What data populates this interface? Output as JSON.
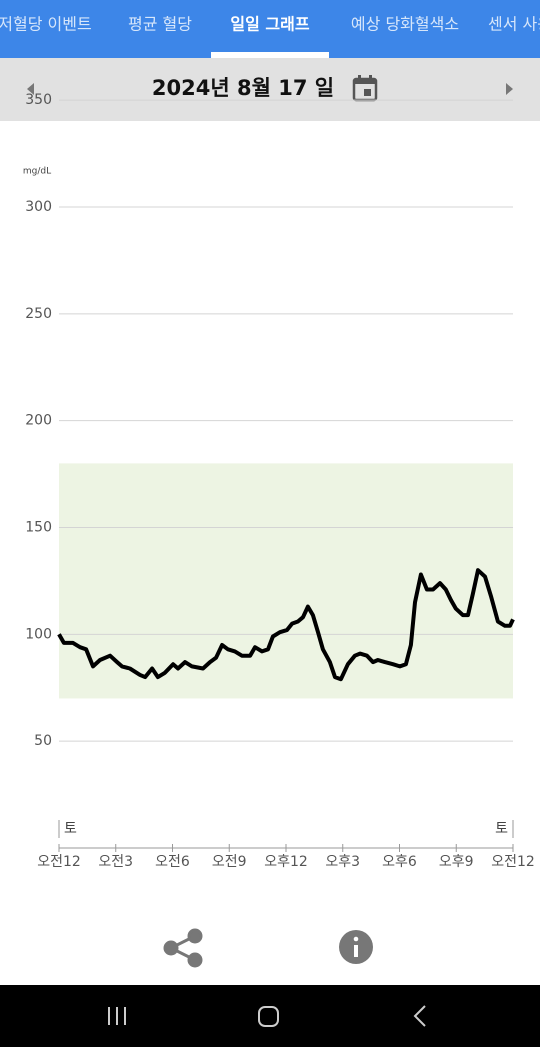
{
  "tabs": [
    "저혈당 이벤트",
    "평균 혈당",
    "일일 그래프",
    "예상 당화혈색소",
    "센서 사용"
  ],
  "active_tab": 2,
  "date": "2024년 8월 17 일",
  "chart_data": {
    "type": "line",
    "y_unit_label": "mg/dL",
    "x": [
      0,
      0.26,
      0.74,
      1.11,
      1.43,
      1.8,
      2.17,
      2.7,
      3.07,
      3.33,
      3.75,
      4.28,
      4.55,
      4.92,
      5.23,
      5.6,
      6.03,
      6.29,
      6.66,
      7.03,
      7.61,
      7.98,
      8.3,
      8.62,
      8.93,
      9.3,
      9.67,
      10.1,
      10.36,
      10.73,
      11.05,
      11.31,
      11.68,
      12.05,
      12.32,
      12.63,
      12.9,
      13.16,
      13.42,
      13.69,
      13.95,
      14.32,
      14.59,
      14.9,
      15.27,
      15.64,
      15.91,
      16.28,
      16.6,
      16.86,
      17.23,
      17.65,
      18.02,
      18.34,
      18.6,
      18.82,
      19.13,
      19.45,
      19.77,
      20.14,
      20.45,
      20.72,
      20.98,
      21.35,
      21.62,
      21.88,
      22.15,
      22.52,
      22.83,
      23.2,
      23.57,
      23.84,
      24
    ],
    "series": [
      {
        "color": "#000000",
        "values": [
          100,
          96,
          96,
          94,
          93,
          85,
          88,
          90,
          87,
          85,
          84,
          81,
          80,
          84,
          80,
          82,
          86,
          84,
          87,
          85,
          84,
          87,
          89,
          95,
          93,
          92,
          90,
          90,
          94,
          92,
          93,
          99,
          101,
          102,
          105,
          106,
          108,
          113,
          109,
          101,
          93,
          87,
          80,
          79,
          86,
          90,
          91,
          90,
          87,
          88,
          87,
          86,
          85,
          86,
          95,
          115,
          128,
          121,
          121,
          124,
          121,
          116,
          112,
          109,
          109,
          119,
          130,
          127,
          118,
          106,
          104,
          104,
          107
        ]
      }
    ],
    "xlim": [
      0,
      24
    ],
    "ylim": [
      0,
      350
    ],
    "yticks": [
      50,
      100,
      150,
      200,
      250,
      300,
      350
    ],
    "xticks": [
      {
        "value": 0,
        "label": "오전12"
      },
      {
        "value": 3,
        "label": "오전3"
      },
      {
        "value": 6,
        "label": "오전6"
      },
      {
        "value": 9,
        "label": "오전9"
      },
      {
        "value": 12,
        "label": "오후12"
      },
      {
        "value": 15,
        "label": "오후3"
      },
      {
        "value": 18,
        "label": "오후6"
      },
      {
        "value": 21,
        "label": "오후9"
      },
      {
        "value": 24,
        "label": "오전12"
      }
    ],
    "day_labels": [
      {
        "value": 0,
        "label": "토"
      },
      {
        "value": 24,
        "label": "토"
      }
    ],
    "target_range": [
      70,
      180
    ],
    "target_color": "#edf4e3",
    "grid": true
  }
}
